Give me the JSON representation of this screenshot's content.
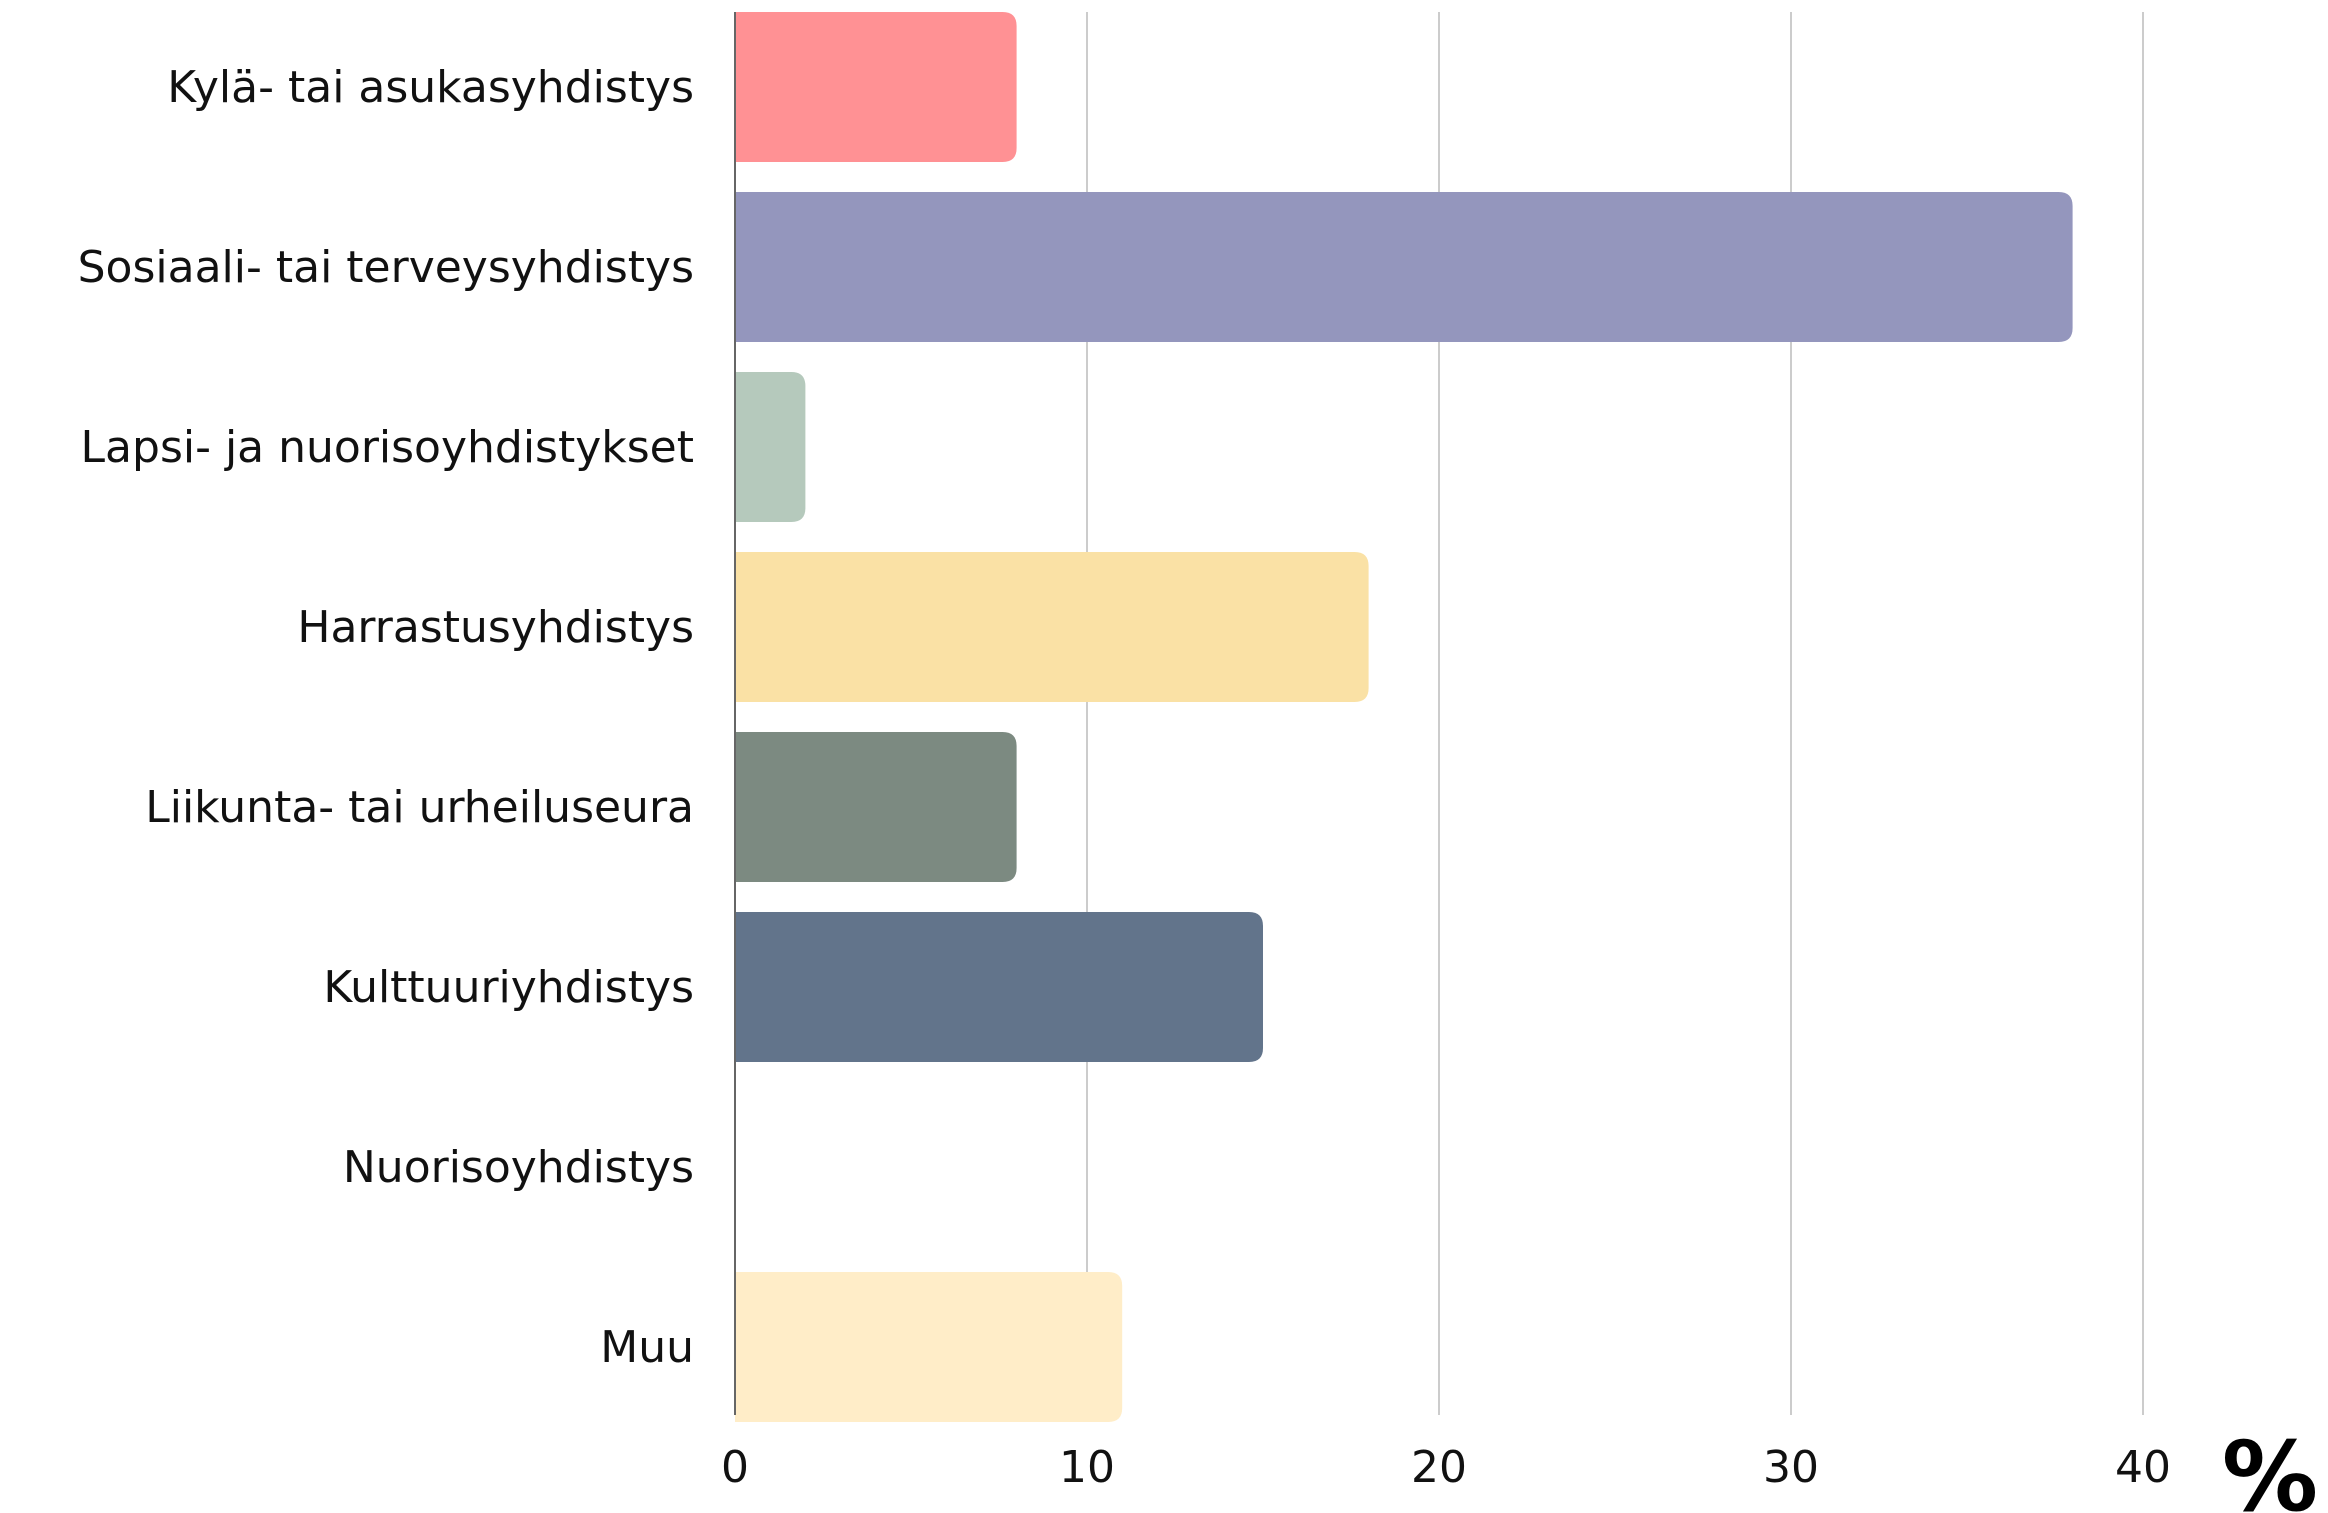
{
  "chart_data": {
    "type": "bar",
    "orientation": "horizontal",
    "categories": [
      "Kylä- tai asukasyhdistys",
      "Sosiaali- tai terveysyhdistys",
      "Lapsi- ja nuorisoyhdistykset",
      "Harrastusyhdistys",
      "Liikunta- tai urheiluseura",
      "Kulttuuriyhdistys",
      "Nuorisoyhdistys",
      "Muu"
    ],
    "values": [
      8,
      38,
      2,
      18,
      8,
      15,
      0,
      11
    ],
    "colors": [
      "#ff9194",
      "#9496bd",
      "#b5c9bc",
      "#fae1a5",
      "#7c8a81",
      "#62748b",
      "#cccccc",
      "#ffedc8"
    ],
    "xlim": [
      0,
      40
    ],
    "xticks": [
      "0",
      "10",
      "20",
      "30",
      "40"
    ],
    "unit_label": "%",
    "grid": true,
    "title": "",
    "xlabel": "",
    "ylabel": ""
  }
}
